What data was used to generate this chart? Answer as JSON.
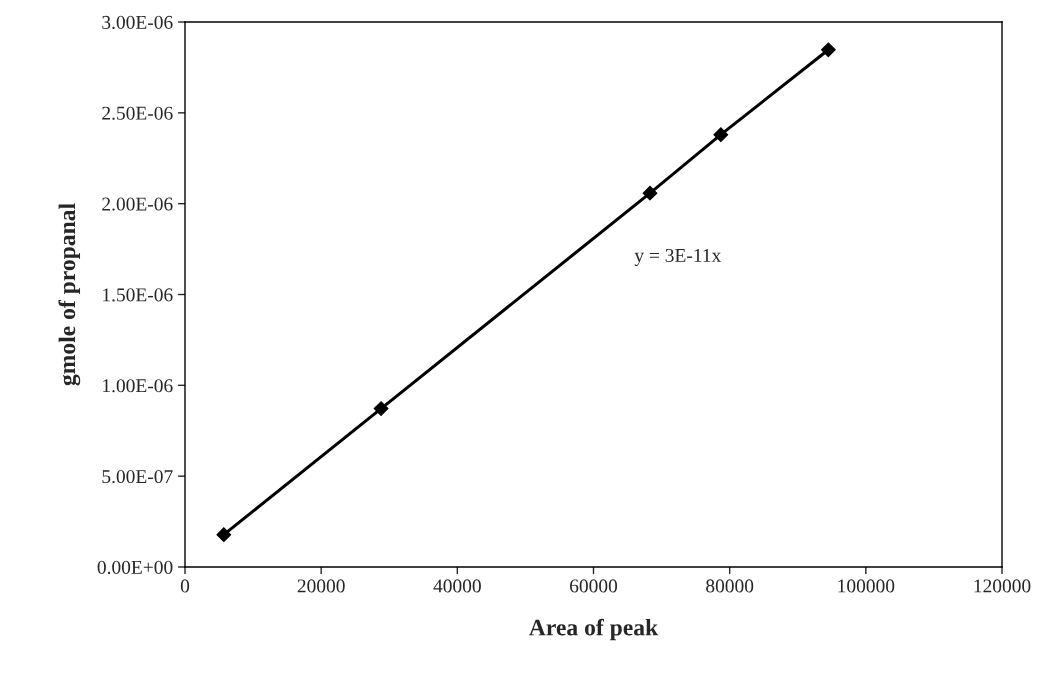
{
  "chart_data": {
    "type": "line",
    "xlabel": "Area of peak",
    "ylabel": "gmole of propanal",
    "x": [
      5700,
      28800,
      68300,
      78700,
      94500
    ],
    "series": [
      {
        "color": "#000000",
        "values": [
          1.78e-07,
          8.72e-07,
          2.058e-06,
          2.38e-06,
          2.847e-06
        ]
      }
    ],
    "marker": "diamond",
    "line_style": "solid",
    "xlim": [
      0,
      120000
    ],
    "xticks": [
      0,
      20000,
      40000,
      60000,
      80000,
      100000,
      120000
    ],
    "ylim": [
      0,
      3e-06
    ],
    "yticks": [
      {
        "value": 0,
        "label": "0.00E+00"
      },
      {
        "value": 5e-07,
        "label": "5.00E-07"
      },
      {
        "value": 1e-06,
        "label": "1.00E-06"
      },
      {
        "value": 1.5e-06,
        "label": "1.50E-06"
      },
      {
        "value": 2e-06,
        "label": "2.00E-06"
      },
      {
        "value": 2.5e-06,
        "label": "2.50E-06"
      },
      {
        "value": 3e-06,
        "label": "3.00E-06"
      }
    ],
    "annotations": [
      "y = 3E-11x"
    ],
    "grid": false,
    "legend": false
  }
}
